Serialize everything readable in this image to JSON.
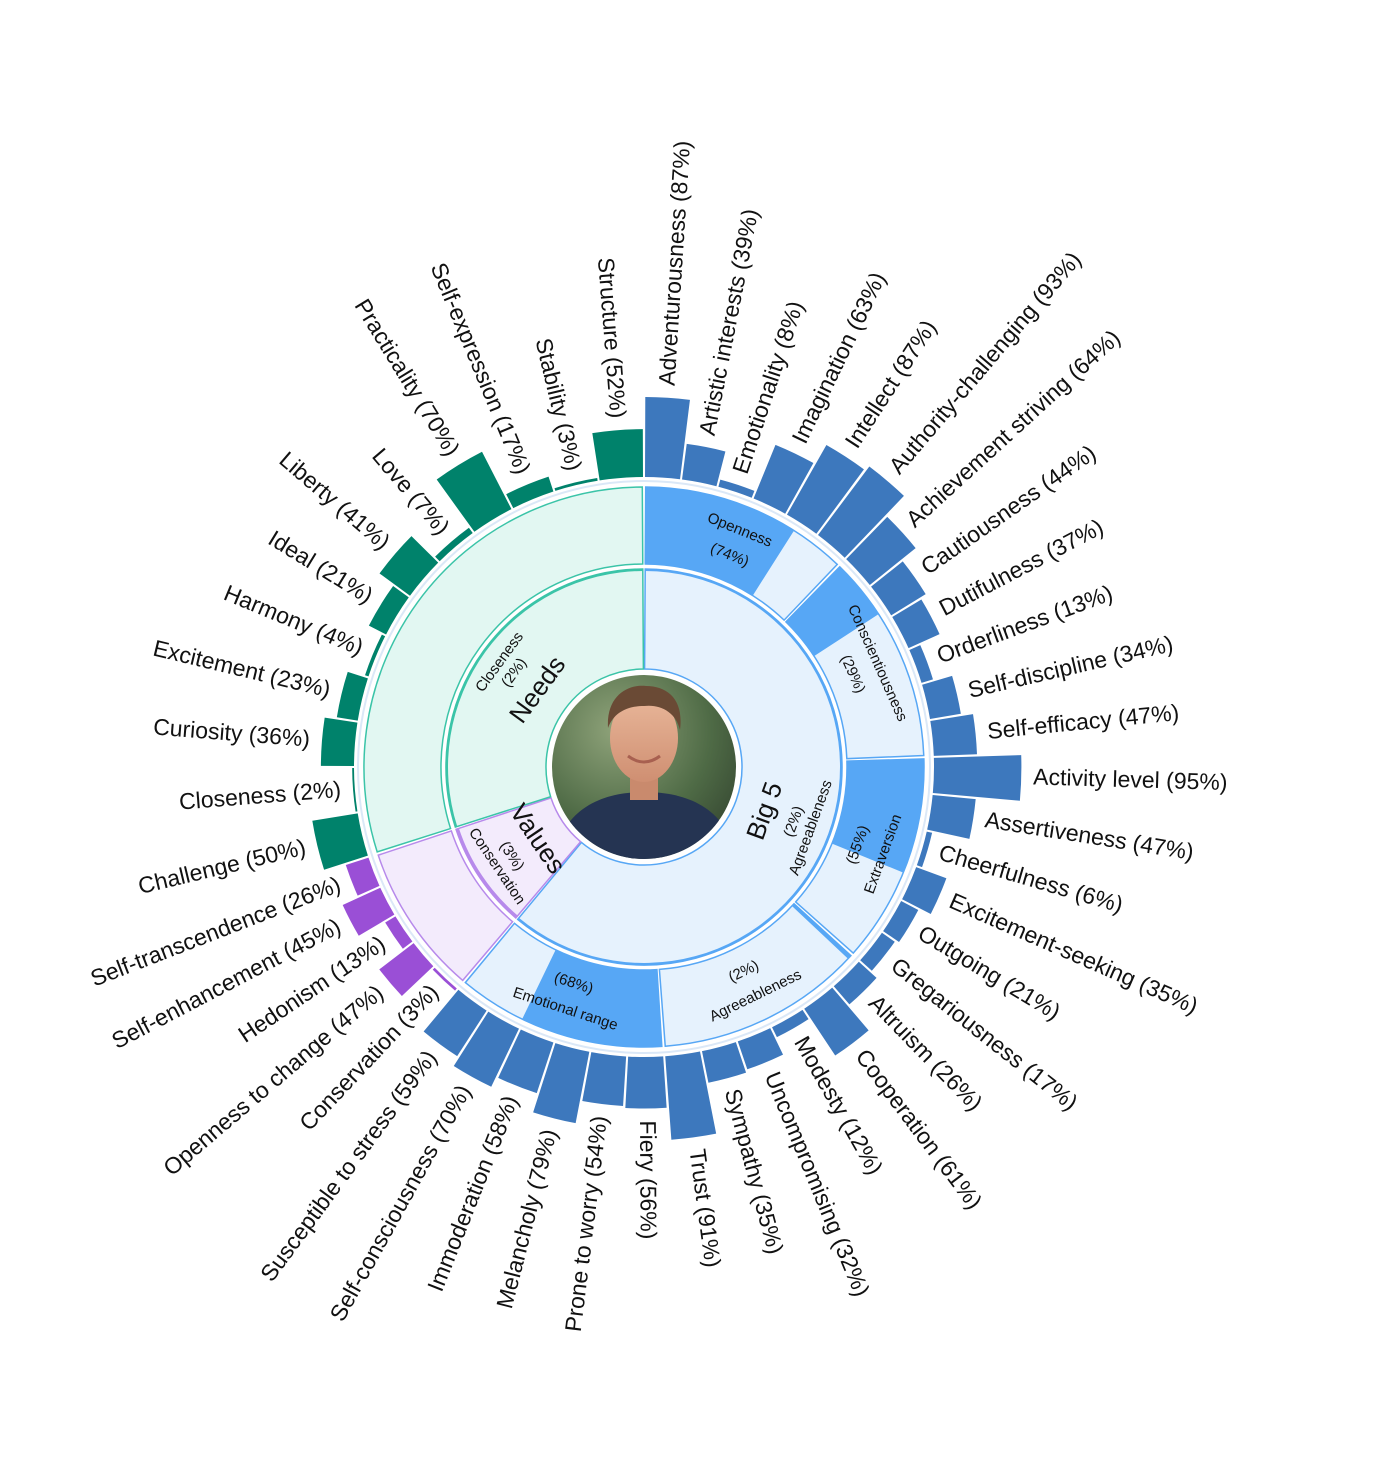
{
  "chart_data": {
    "type": "sunburst",
    "sections": [
      {
        "name": "Big 5",
        "color": "#3D78BD",
        "light_color": "#E6F2FD",
        "mid_color": "#57A7F5",
        "border_color": "#57A7F5",
        "inner": {
          "label": "Agreeableness",
          "value_label": "(2%)",
          "value": 2
        },
        "categories": [
          {
            "label": "Openness",
            "value_label": "(74%)",
            "value": 74,
            "traits": [
              {
                "label": "Adventurousness (87%)",
                "value": 87
              },
              {
                "label": "Artistic interests (39%)",
                "value": 39
              },
              {
                "label": "Emotionality (8%)",
                "value": 8
              },
              {
                "label": "Imagination (63%)",
                "value": 63
              },
              {
                "label": "Intellect (87%)",
                "value": 87
              },
              {
                "label": "Authority-challenging (93%)",
                "value": 93
              }
            ]
          },
          {
            "label": "Conscientiousness",
            "value_label": "(29%)",
            "value": 29,
            "traits": [
              {
                "label": "Achievement striving (64%)",
                "value": 64
              },
              {
                "label": "Cautiousness (44%)",
                "value": 44
              },
              {
                "label": "Dutifulness (37%)",
                "value": 37
              },
              {
                "label": "Orderliness (13%)",
                "value": 13
              },
              {
                "label": "Self-discipline (34%)",
                "value": 34
              },
              {
                "label": "Self-efficacy (47%)",
                "value": 47
              }
            ]
          },
          {
            "label": "Extraversion",
            "value_label": "(55%)",
            "value": 55,
            "traits": [
              {
                "label": "Activity level (95%)",
                "value": 95
              },
              {
                "label": "Assertiveness (47%)",
                "value": 47
              },
              {
                "label": "Cheerfulness (6%)",
                "value": 6
              },
              {
                "label": "Excitement-seeking (35%)",
                "value": 35
              },
              {
                "label": "Outgoing (21%)",
                "value": 21
              },
              {
                "label": "Gregariousness (17%)",
                "value": 17
              }
            ]
          },
          {
            "label": "Agreeableness",
            "value_label": "(2%)",
            "value": 2,
            "traits": [
              {
                "label": "Altruism (26%)",
                "value": 26
              },
              {
                "label": "Cooperation (61%)",
                "value": 61
              },
              {
                "label": "Modesty (12%)",
                "value": 12
              },
              {
                "label": "Uncompromising (32%)",
                "value": 32
              },
              {
                "label": "Sympathy (35%)",
                "value": 35
              },
              {
                "label": "Trust (91%)",
                "value": 91
              }
            ]
          },
          {
            "label": "Emotional range",
            "value_label": "(68%)",
            "value": 68,
            "traits": [
              {
                "label": "Fiery (56%)",
                "value": 56
              },
              {
                "label": "Prone to worry (54%)",
                "value": 54
              },
              {
                "label": "Melancholy (79%)",
                "value": 79
              },
              {
                "label": "Immoderation (58%)",
                "value": 58
              },
              {
                "label": "Self-consciousness (70%)",
                "value": 70
              },
              {
                "label": "Susceptible to stress (59%)",
                "value": 59
              }
            ]
          }
        ]
      },
      {
        "name": "Values",
        "color": "#9A4FD6",
        "light_color": "#F3EBFC",
        "mid_color": "#B78AEB",
        "border_color": "#B78AEB",
        "inner": {
          "label": "Conservation",
          "value_label": "(3%)",
          "value": 3
        },
        "traits": [
          {
            "label": "Conservation (3%)",
            "value": 3
          },
          {
            "label": "Openness to change (47%)",
            "value": 47
          },
          {
            "label": "Hedonism (13%)",
            "value": 13
          },
          {
            "label": "Self-enhancement (45%)",
            "value": 45
          },
          {
            "label": "Self-transcendence (26%)",
            "value": 26
          }
        ]
      },
      {
        "name": "Needs",
        "color": "#00826B",
        "light_color": "#E2F7F2",
        "mid_color": "#3BC4A8",
        "border_color": "#3BC4A8",
        "inner": {
          "label": "Closeness",
          "value_label": "(2%)",
          "value": 2
        },
        "traits": [
          {
            "label": "Challenge (50%)",
            "value": 50
          },
          {
            "label": "Closeness (2%)",
            "value": 2
          },
          {
            "label": "Curiosity (36%)",
            "value": 36
          },
          {
            "label": "Excitement (23%)",
            "value": 23
          },
          {
            "label": "Harmony (4%)",
            "value": 4
          },
          {
            "label": "Ideal (21%)",
            "value": 21
          },
          {
            "label": "Liberty (41%)",
            "value": 41
          },
          {
            "label": "Love (7%)",
            "value": 7
          },
          {
            "label": "Practicality (70%)",
            "value": 70
          },
          {
            "label": "Self-expression (17%)",
            "value": 17
          },
          {
            "label": "Stability (3%)",
            "value": 3
          },
          {
            "label": "Structure (52%)",
            "value": 52
          }
        ]
      }
    ],
    "center": {
      "image": "profile-photo"
    }
  }
}
